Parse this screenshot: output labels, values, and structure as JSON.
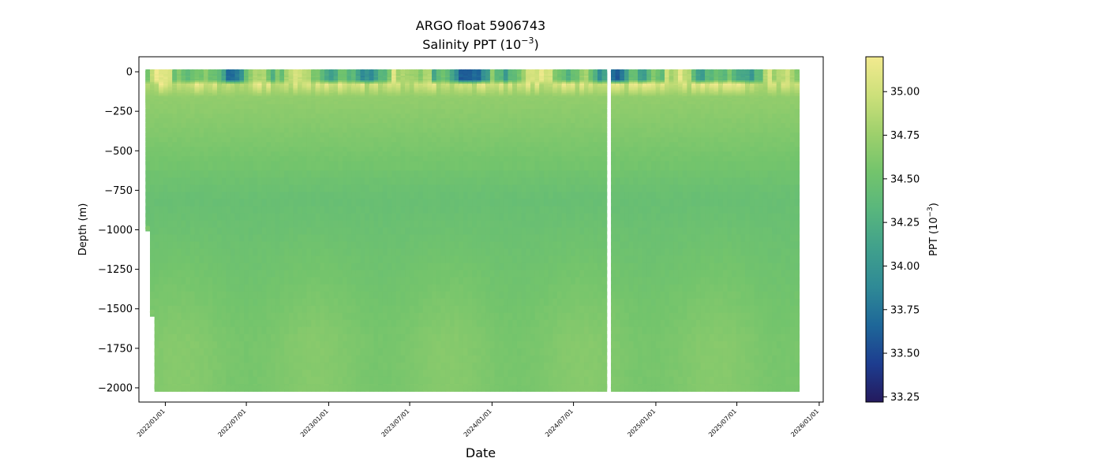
{
  "figure": {
    "title_line1": "ARGO float 5906743",
    "title_line2_main": "Salinity PPT (10",
    "title_line2_exp": "−3",
    "title_line2_tail": ")"
  },
  "axes": {
    "xlabel": "Date",
    "ylabel": "Depth (m)"
  },
  "colorbar": {
    "label_main": "PPT (10",
    "label_exp": "−3",
    "label_tail": ")",
    "range": [
      33.22,
      35.2
    ],
    "colors": [
      "#241a5e",
      "#1d3d8f",
      "#1e6799",
      "#2f8a96",
      "#40a08c",
      "#58b67d",
      "#73c46c",
      "#9ed06c",
      "#cde07a",
      "#f2ea8f"
    ],
    "ticks": [
      {
        "value": 33.25,
        "label": "33.25"
      },
      {
        "value": 33.5,
        "label": "33.50"
      },
      {
        "value": 33.75,
        "label": "33.75"
      },
      {
        "value": 34.0,
        "label": "34.00"
      },
      {
        "value": 34.25,
        "label": "34.25"
      },
      {
        "value": 34.5,
        "label": "34.50"
      },
      {
        "value": 34.75,
        "label": "34.75"
      },
      {
        "value": 35.0,
        "label": "35.00"
      }
    ]
  },
  "chart_data": {
    "type": "scatter",
    "title": "ARGO float 5906743",
    "subtitle": "Salinity PPT (10−3)",
    "xlabel": "Date",
    "ylabel": "Depth (m)",
    "xlim": [
      "2021-11-03",
      "2026-01-10"
    ],
    "ylim": [
      -2090,
      95
    ],
    "x_ticks": [
      {
        "date": "2022-01-01",
        "label": "2022/01/01"
      },
      {
        "date": "2022-07-01",
        "label": "2022/07/01"
      },
      {
        "date": "2023-01-01",
        "label": "2023/01/01"
      },
      {
        "date": "2023-07-01",
        "label": "2023/07/01"
      },
      {
        "date": "2024-01-01",
        "label": "2024/01/01"
      },
      {
        "date": "2024-07-01",
        "label": "2024/07/01"
      },
      {
        "date": "2025-01-01",
        "label": "2025/01/01"
      },
      {
        "date": "2025-07-01",
        "label": "2025/07/01"
      },
      {
        "date": "2026-01-01",
        "label": "2026/01/01"
      }
    ],
    "y_ticks": [
      {
        "value": 0,
        "label": "0"
      },
      {
        "value": -250,
        "label": "−250"
      },
      {
        "value": -500,
        "label": "−500"
      },
      {
        "value": -750,
        "label": "−750"
      },
      {
        "value": -1000,
        "label": "−1000"
      },
      {
        "value": -1250,
        "label": "−1250"
      },
      {
        "value": -1500,
        "label": "−1500"
      },
      {
        "value": -1750,
        "label": "−1750"
      },
      {
        "value": -2000,
        "label": "−2000"
      }
    ],
    "data_range": {
      "start_date": "2021-11-23",
      "end_date": "2025-11-20",
      "min_depth": -2000,
      "max_depth": 0
    },
    "gaps": [
      {
        "start": "2024-09-14",
        "end": "2024-09-26",
        "top_depth": -140
      }
    ],
    "early_profiles": [
      {
        "date": "2021-11-23",
        "max_depth": -990
      },
      {
        "date": "2021-12-03",
        "max_depth": -1520
      }
    ],
    "typical_salinity": {
      "surface_range": [
        33.6,
        35.2
      ],
      "subsurface_max_near_depth": -120,
      "deep_value": 34.6,
      "intermediate_min": 34.45,
      "intermediate_min_depth": -800
    },
    "grid": false,
    "colorbar": "right"
  }
}
